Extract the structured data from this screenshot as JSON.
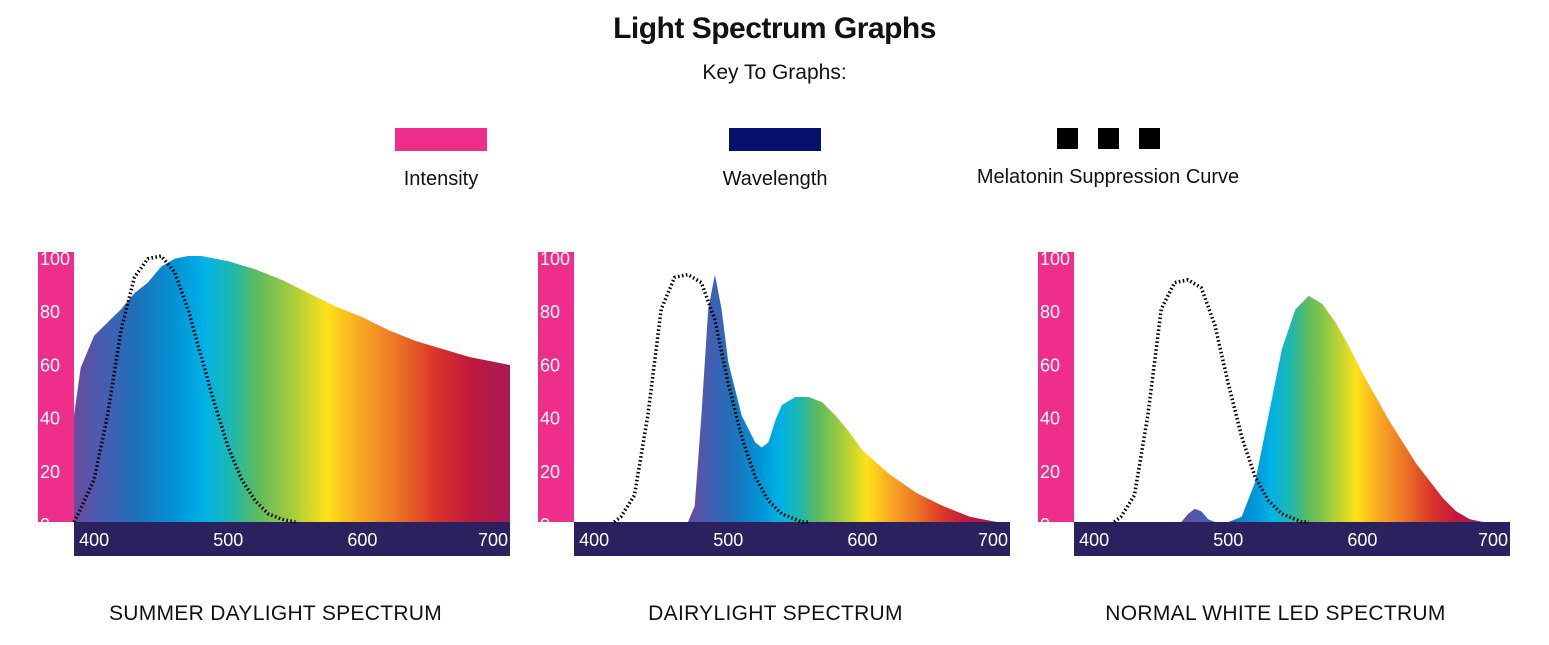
{
  "header": {
    "title": "Light Spectrum Graphs",
    "subtitle": "Key To Graphs:"
  },
  "legend": {
    "intensity": {
      "label": "Intensity",
      "color": "#ee2e8a"
    },
    "wavelength": {
      "label": "Wavelength",
      "color": "#05106b"
    },
    "melatonin": {
      "label": "Melatonin Suppression Curve",
      "color": "#000000"
    }
  },
  "axis_colors": {
    "intensity_bar": "#ee2e8a",
    "wavelength_bar": "#2b215e"
  },
  "chart_data": [
    {
      "type": "area",
      "title": "SUMMER DAYLIGHT SPECTRUM",
      "x_ticks": [
        400,
        500,
        600,
        700
      ],
      "y_ticks": [
        0,
        20,
        40,
        60,
        80,
        100
      ],
      "xlim": [
        385,
        710
      ],
      "ylim": [
        0,
        100
      ],
      "series": [
        {
          "name": "Intensity",
          "x": [
            385,
            390,
            400,
            410,
            420,
            430,
            440,
            450,
            460,
            470,
            480,
            500,
            520,
            540,
            560,
            580,
            600,
            620,
            640,
            660,
            680,
            700,
            710
          ],
          "values": [
            40,
            58,
            70,
            75,
            80,
            86,
            90,
            96,
            99,
            100,
            100,
            98,
            95,
            91,
            86,
            81,
            77,
            72,
            68,
            65,
            62,
            60,
            59
          ]
        },
        {
          "name": "Melatonin Suppression Curve",
          "x": [
            385,
            390,
            400,
            410,
            420,
            430,
            440,
            450,
            460,
            470,
            480,
            490,
            500,
            510,
            520,
            530,
            540,
            550
          ],
          "values": [
            0,
            5,
            16,
            40,
            72,
            92,
            99,
            100,
            94,
            80,
            62,
            44,
            28,
            16,
            8,
            3,
            1,
            0
          ]
        }
      ]
    },
    {
      "type": "area",
      "title": "DAIRYLIGHT SPECTRUM",
      "x_ticks": [
        400,
        500,
        600,
        700
      ],
      "y_ticks": [
        0,
        20,
        40,
        60,
        80,
        100
      ],
      "xlim": [
        385,
        710
      ],
      "ylim": [
        0,
        100
      ],
      "series": [
        {
          "name": "Intensity",
          "x": [
            470,
            475,
            480,
            485,
            490,
            495,
            500,
            510,
            520,
            525,
            530,
            535,
            540,
            550,
            560,
            570,
            580,
            590,
            600,
            620,
            640,
            660,
            680,
            700
          ],
          "values": [
            0,
            6,
            40,
            80,
            93,
            80,
            60,
            40,
            30,
            28,
            30,
            38,
            44,
            47,
            47,
            45,
            40,
            34,
            27,
            18,
            11,
            6,
            2,
            0
          ]
        },
        {
          "name": "Melatonin Suppression Curve",
          "x": [
            415,
            420,
            430,
            440,
            450,
            460,
            470,
            480,
            490,
            500,
            510,
            520,
            530,
            540,
            550,
            555,
            560
          ],
          "values": [
            0,
            2,
            10,
            40,
            80,
            92,
            93,
            90,
            76,
            52,
            32,
            17,
            8,
            3,
            1,
            0,
            0
          ]
        }
      ]
    },
    {
      "type": "area",
      "title": "NORMAL WHITE LED SPECTRUM",
      "x_ticks": [
        400,
        500,
        600,
        700
      ],
      "y_ticks": [
        0,
        20,
        40,
        60,
        80,
        100
      ],
      "xlim": [
        385,
        710
      ],
      "ylim": [
        0,
        100
      ],
      "series": [
        {
          "name": "Intensity",
          "x": [
            465,
            470,
            475,
            480,
            485,
            490,
            500,
            510,
            520,
            530,
            540,
            550,
            560,
            570,
            580,
            590,
            600,
            620,
            640,
            660,
            670,
            680,
            690
          ],
          "values": [
            0,
            3,
            5,
            4,
            1,
            0,
            0,
            2,
            15,
            40,
            65,
            80,
            85,
            82,
            75,
            66,
            56,
            38,
            22,
            9,
            4,
            1,
            0
          ]
        },
        {
          "name": "Melatonin Suppression Curve",
          "x": [
            415,
            420,
            430,
            440,
            450,
            460,
            470,
            480,
            490,
            500,
            510,
            520,
            530,
            540,
            550,
            555,
            560
          ],
          "values": [
            0,
            2,
            10,
            40,
            80,
            90,
            91,
            88,
            74,
            52,
            32,
            17,
            8,
            3,
            1,
            0,
            0
          ]
        }
      ]
    }
  ]
}
